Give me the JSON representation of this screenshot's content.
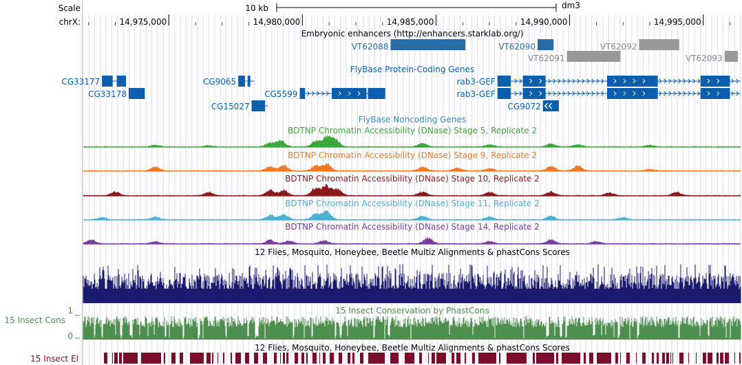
{
  "genome_browser": {
    "scale_label": "Scale",
    "chrom_label": "chrX:",
    "scale_bar_label": "10 kb",
    "assembly": "dm3",
    "region": {
      "start": 14971800,
      "end": 14996400
    },
    "ticks": [
      {
        "pos": 14975000,
        "label": "14,975,000"
      },
      {
        "pos": 14980000,
        "label": "14,980,000"
      },
      {
        "pos": 14985000,
        "label": "14,985,000"
      },
      {
        "pos": 14990000,
        "label": "14,990,000"
      },
      {
        "pos": 14995000,
        "label": "14,995,000"
      }
    ],
    "colors": {
      "enhancer_blue": "#2a6aa7",
      "enhancer_gray": "#999999",
      "gene_blue": "#0a5ead",
      "stage5": "#3aa83a",
      "stage9": "#f07a24",
      "stage10": "#8b1a1a",
      "stage11": "#4ab0d4",
      "stage14": "#7a3c9e",
      "multiz": "#1a1a6e",
      "cons": "#4e8e4e",
      "elements": "#7a0e2a",
      "grid": "#dcdcf0",
      "left_line": "#f0b0b0"
    },
    "tracks": {
      "enhancers": {
        "title": "Embryonic enhancers (http://enhancers.starklab.org/)",
        "items": [
          {
            "name": "VT62088",
            "start": 14983300,
            "end": 14986100,
            "shade": "blue"
          },
          {
            "name": "VT62090",
            "start": 14988800,
            "end": 14989400,
            "shade": "blue"
          },
          {
            "name": "VT62091",
            "start": 14989900,
            "end": 14991900,
            "shade": "gray"
          },
          {
            "name": "VT62092",
            "start": 14992600,
            "end": 14994100,
            "shade": "gray"
          },
          {
            "name": "VT62093",
            "start": 14995800,
            "end": 14996300,
            "shade": "gray"
          }
        ]
      },
      "genes": {
        "title": "FlyBase Protein-Coding Genes",
        "items": [
          {
            "name": "CG33177",
            "row": 0,
            "start": 14972500,
            "end": 14973400,
            "exons": [
              [
                14972500,
                14972900
              ],
              [
                14973050,
                14973400
              ]
            ]
          },
          {
            "name": "CG9065",
            "row": 0,
            "start": 14977600,
            "end": 14978200,
            "exons": [
              [
                14977600,
                14977850
              ],
              [
                14977950,
                14978050
              ]
            ]
          },
          {
            "name": "CG33178",
            "row": 1,
            "start": 14973500,
            "end": 14974100,
            "exons": [
              [
                14973500,
                14974100
              ]
            ]
          },
          {
            "name": "CG5599",
            "row": 1,
            "start": 14979900,
            "end": 14983100,
            "exons": [
              [
                14979900,
                14980100
              ],
              [
                14981100,
                14982400
              ],
              [
                14982450,
                14983100
              ]
            ]
          },
          {
            "name": "rab3-GEF",
            "row": 0,
            "start": 14987300,
            "end": 14996400,
            "exons": [
              [
                14987300,
                14987800
              ],
              [
                14988250,
                14989100
              ],
              [
                14991400,
                14993300
              ],
              [
                14994900,
                14996000
              ]
            ]
          },
          {
            "name": "rab3-GEF",
            "row": 1,
            "start": 14987300,
            "end": 14996400,
            "exons": [
              [
                14987300,
                14987800
              ],
              [
                14988250,
                14989100
              ],
              [
                14991400,
                14993300
              ],
              [
                14994900,
                14996000
              ]
            ]
          },
          {
            "name": "CG15027",
            "row": 2,
            "start": 14978100,
            "end": 14978700,
            "exons": [
              [
                14978100,
                14978600
              ]
            ]
          },
          {
            "name": "CG9072",
            "row": 2,
            "start": 14989000,
            "end": 14989600,
            "exons": [
              [
                14989000,
                14989600
              ]
            ]
          }
        ]
      },
      "noncoding": {
        "title": "FlyBase Noncoding Genes"
      },
      "dnase": [
        {
          "title": "BDTNP Chromatin Accessibility (DNase) Stage 5, Replicate 2",
          "color_key": "stage5",
          "peaks": [
            {
              "pos": 14974500,
              "h": 0.15
            },
            {
              "pos": 14976500,
              "h": 0.1
            },
            {
              "pos": 14978800,
              "h": 0.4
            },
            {
              "pos": 14979200,
              "h": 0.55
            },
            {
              "pos": 14980500,
              "h": 0.5
            },
            {
              "pos": 14980900,
              "h": 0.85
            },
            {
              "pos": 14981200,
              "h": 0.7
            },
            {
              "pos": 14984500,
              "h": 0.3
            },
            {
              "pos": 14987000,
              "h": 0.2
            },
            {
              "pos": 14989300,
              "h": 0.25
            },
            {
              "pos": 14990300,
              "h": 0.2
            },
            {
              "pos": 14993000,
              "h": 0.15
            }
          ]
        },
        {
          "title": "BDTNP Chromatin Accessibility (DNase) Stage 9, Replicate 2",
          "color_key": "stage9",
          "peaks": [
            {
              "pos": 14974500,
              "h": 0.35
            },
            {
              "pos": 14978800,
              "h": 0.4
            },
            {
              "pos": 14979300,
              "h": 0.5
            },
            {
              "pos": 14980500,
              "h": 0.45
            },
            {
              "pos": 14980900,
              "h": 0.6
            },
            {
              "pos": 14984500,
              "h": 0.35
            },
            {
              "pos": 14985800,
              "h": 0.25
            },
            {
              "pos": 14987000,
              "h": 0.2
            },
            {
              "pos": 14989300,
              "h": 0.4
            },
            {
              "pos": 14990300,
              "h": 0.45
            },
            {
              "pos": 14993000,
              "h": 0.15
            }
          ]
        },
        {
          "title": "BDTNP Chromatin Accessibility (DNase) Stage 10, Replicate 2",
          "color_key": "stage10",
          "peaks": [
            {
              "pos": 14973000,
              "h": 0.35
            },
            {
              "pos": 14976500,
              "h": 0.3
            },
            {
              "pos": 14978800,
              "h": 0.5
            },
            {
              "pos": 14979300,
              "h": 0.5
            },
            {
              "pos": 14980500,
              "h": 0.7
            },
            {
              "pos": 14980900,
              "h": 0.9
            },
            {
              "pos": 14981300,
              "h": 0.6
            },
            {
              "pos": 14984500,
              "h": 0.35
            },
            {
              "pos": 14987000,
              "h": 0.3
            },
            {
              "pos": 14989300,
              "h": 0.35
            },
            {
              "pos": 14991500,
              "h": 0.25
            },
            {
              "pos": 14994000,
              "h": 0.3
            }
          ]
        },
        {
          "title": "BDTNP Chromatin Accessibility (DNase) Stage 11, Replicate 2",
          "color_key": "stage11",
          "peaks": [
            {
              "pos": 14972500,
              "h": 0.2
            },
            {
              "pos": 14974500,
              "h": 0.25
            },
            {
              "pos": 14978800,
              "h": 0.4
            },
            {
              "pos": 14979300,
              "h": 0.45
            },
            {
              "pos": 14980500,
              "h": 0.5
            },
            {
              "pos": 14980900,
              "h": 0.75
            },
            {
              "pos": 14984500,
              "h": 0.3
            },
            {
              "pos": 14987000,
              "h": 0.25
            },
            {
              "pos": 14989300,
              "h": 0.3
            },
            {
              "pos": 14992000,
              "h": 0.2
            }
          ]
        },
        {
          "title": "BDTNP Chromatin Accessibility (DNase) Stage 14, Replicate 2",
          "color_key": "stage14",
          "peaks": [
            {
              "pos": 14972100,
              "h": 0.35
            },
            {
              "pos": 14974500,
              "h": 0.2
            },
            {
              "pos": 14978800,
              "h": 0.3
            },
            {
              "pos": 14979500,
              "h": 0.25
            },
            {
              "pos": 14980800,
              "h": 0.3
            },
            {
              "pos": 14984700,
              "h": 0.55
            },
            {
              "pos": 14987000,
              "h": 0.2
            },
            {
              "pos": 14989300,
              "h": 0.35
            },
            {
              "pos": 14991000,
              "h": 0.2
            }
          ]
        }
      ],
      "multiz": {
        "title": "12 Flies, Mosquito, Honeybee, Beetle Multiz Alignments & phastCons Scores"
      },
      "phastcons": {
        "title": "15 Insect Conservation by PhastCons",
        "left_label": "15 Insect Cons",
        "ymax_label": "1",
        "ymin_label": "0"
      },
      "elements": {
        "title": "12 Flies, Mosquito, Honeybee, Beetle Multiz Alignments & phastCons Scores",
        "left_label": "15 Insect El"
      }
    }
  }
}
